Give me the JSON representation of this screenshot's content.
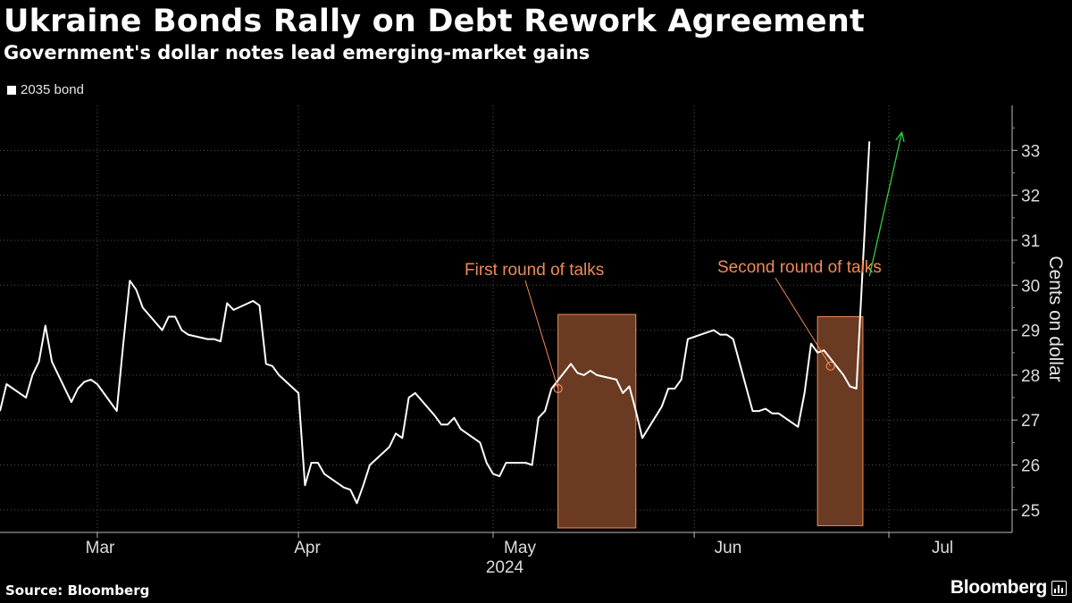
{
  "header": {
    "title": "Ukraine Bonds Rally on Debt Rework Agreement",
    "subtitle": "Government's dollar notes lead emerging-market gains"
  },
  "footer": {
    "source": "Source: Bloomberg",
    "brand": "Bloomberg"
  },
  "colors": {
    "background": "#000000",
    "line": "#ffffff",
    "annotation": "#f08a55",
    "highlight_fill": "#6b3a22",
    "arrow": "#2ecc40",
    "grid": "#555555"
  },
  "icons": {
    "brand": "bar-chart-icon"
  },
  "chart_data": {
    "type": "line",
    "title": "Ukraine Bonds Rally on Debt Rework Agreement",
    "subtitle": "Government's dollar notes lead emerging-market gains",
    "xlabel": "",
    "ylabel": "Cents on dollar",
    "ylim": [
      24.5,
      34
    ],
    "yticks": [
      25,
      26,
      27,
      28,
      29,
      30,
      31,
      32,
      33
    ],
    "y_axis_position": "right",
    "grid": true,
    "legend_position": "top-left",
    "x_tick_labels": [
      "Mar",
      "Apr",
      "May",
      "Jun",
      "Jul"
    ],
    "x_year_label": "2024",
    "xlim": [
      "2024-02-15",
      "2024-07-20"
    ],
    "x_tick_dates": [
      "2024-03-01",
      "2024-04-01",
      "2024-05-01",
      "2024-06-01",
      "2024-07-01"
    ],
    "series": [
      {
        "name": "2035 bond",
        "points": [
          [
            "2024-02-15",
            27.2
          ],
          [
            "2024-02-16",
            27.8
          ],
          [
            "2024-02-19",
            27.5
          ],
          [
            "2024-02-20",
            28.0
          ],
          [
            "2024-02-21",
            28.3
          ],
          [
            "2024-02-22",
            29.1
          ],
          [
            "2024-02-23",
            28.3
          ],
          [
            "2024-02-26",
            27.4
          ],
          [
            "2024-02-27",
            27.7
          ],
          [
            "2024-02-28",
            27.85
          ],
          [
            "2024-02-29",
            27.9
          ],
          [
            "2024-03-01",
            27.8
          ],
          [
            "2024-03-04",
            27.2
          ],
          [
            "2024-03-05",
            28.7
          ],
          [
            "2024-03-06",
            30.1
          ],
          [
            "2024-03-07",
            29.9
          ],
          [
            "2024-03-08",
            29.5
          ],
          [
            "2024-03-11",
            29.0
          ],
          [
            "2024-03-12",
            29.3
          ],
          [
            "2024-03-13",
            29.3
          ],
          [
            "2024-03-14",
            29.0
          ],
          [
            "2024-03-15",
            28.9
          ],
          [
            "2024-03-18",
            28.8
          ],
          [
            "2024-03-19",
            28.8
          ],
          [
            "2024-03-20",
            28.75
          ],
          [
            "2024-03-21",
            29.6
          ],
          [
            "2024-03-22",
            29.45
          ],
          [
            "2024-03-25",
            29.65
          ],
          [
            "2024-03-26",
            29.55
          ],
          [
            "2024-03-27",
            28.25
          ],
          [
            "2024-03-28",
            28.2
          ],
          [
            "2024-03-29",
            28.0
          ],
          [
            "2024-04-01",
            27.6
          ],
          [
            "2024-04-02",
            25.55
          ],
          [
            "2024-04-03",
            26.05
          ],
          [
            "2024-04-04",
            26.05
          ],
          [
            "2024-04-05",
            25.8
          ],
          [
            "2024-04-08",
            25.5
          ],
          [
            "2024-04-09",
            25.45
          ],
          [
            "2024-04-10",
            25.15
          ],
          [
            "2024-04-11",
            25.55
          ],
          [
            "2024-04-12",
            26.0
          ],
          [
            "2024-04-15",
            26.4
          ],
          [
            "2024-04-16",
            26.7
          ],
          [
            "2024-04-17",
            26.6
          ],
          [
            "2024-04-18",
            27.5
          ],
          [
            "2024-04-19",
            27.6
          ],
          [
            "2024-04-22",
            27.1
          ],
          [
            "2024-04-23",
            26.9
          ],
          [
            "2024-04-24",
            26.9
          ],
          [
            "2024-04-25",
            27.05
          ],
          [
            "2024-04-26",
            26.8
          ],
          [
            "2024-04-29",
            26.5
          ],
          [
            "2024-04-30",
            26.05
          ],
          [
            "2024-05-01",
            25.8
          ],
          [
            "2024-05-02",
            25.75
          ],
          [
            "2024-05-03",
            26.05
          ],
          [
            "2024-05-06",
            26.05
          ],
          [
            "2024-05-07",
            26.0
          ],
          [
            "2024-05-08",
            27.05
          ],
          [
            "2024-05-09",
            27.2
          ],
          [
            "2024-05-10",
            27.7
          ],
          [
            "2024-05-13",
            28.25
          ],
          [
            "2024-05-14",
            28.05
          ],
          [
            "2024-05-15",
            28.0
          ],
          [
            "2024-05-16",
            28.1
          ],
          [
            "2024-05-17",
            28.0
          ],
          [
            "2024-05-20",
            27.9
          ],
          [
            "2024-05-21",
            27.6
          ],
          [
            "2024-05-22",
            27.75
          ],
          [
            "2024-05-23",
            27.2
          ],
          [
            "2024-05-24",
            26.6
          ],
          [
            "2024-05-27",
            27.3
          ],
          [
            "2024-05-28",
            27.7
          ],
          [
            "2024-05-29",
            27.7
          ],
          [
            "2024-05-30",
            27.9
          ],
          [
            "2024-05-31",
            28.8
          ],
          [
            "2024-06-03",
            28.95
          ],
          [
            "2024-06-04",
            29.0
          ],
          [
            "2024-06-05",
            28.9
          ],
          [
            "2024-06-06",
            28.9
          ],
          [
            "2024-06-07",
            28.8
          ],
          [
            "2024-06-10",
            27.2
          ],
          [
            "2024-06-11",
            27.2
          ],
          [
            "2024-06-12",
            27.25
          ],
          [
            "2024-06-13",
            27.15
          ],
          [
            "2024-06-14",
            27.15
          ],
          [
            "2024-06-17",
            26.85
          ],
          [
            "2024-06-18",
            27.6
          ],
          [
            "2024-06-19",
            28.7
          ],
          [
            "2024-06-20",
            28.5
          ],
          [
            "2024-06-21",
            28.55
          ],
          [
            "2024-06-24",
            28.0
          ],
          [
            "2024-06-25",
            27.75
          ],
          [
            "2024-06-26",
            27.7
          ],
          [
            "2024-06-27",
            30.5
          ],
          [
            "2024-06-28",
            33.2
          ]
        ]
      }
    ],
    "highlight_periods": [
      {
        "start": "2024-05-11",
        "end": "2024-05-23",
        "ymin": 24.6,
        "ymax": 29.35
      },
      {
        "start": "2024-06-20",
        "end": "2024-06-27",
        "ymin": 24.65,
        "ymax": 29.3
      }
    ],
    "annotations": [
      {
        "text": "First round of talks",
        "x": "2024-05-11",
        "y": 27.7
      },
      {
        "text": "Second round of talks",
        "x": "2024-06-22",
        "y": 28.2
      }
    ],
    "arrow": {
      "from": [
        "2024-06-28",
        30.2
      ],
      "to": [
        "2024-07-03",
        33.4
      ]
    }
  }
}
